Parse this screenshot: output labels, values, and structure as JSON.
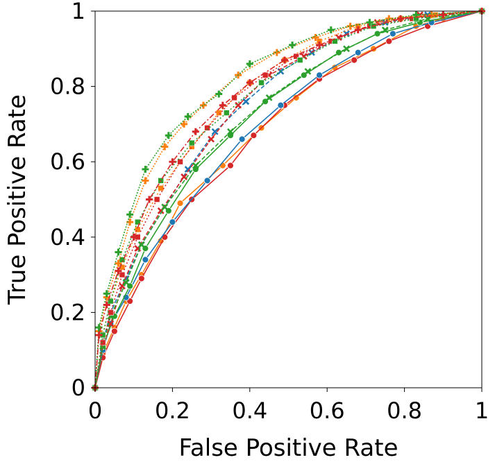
{
  "chart_data": {
    "type": "line",
    "title": "",
    "xlabel": "False Positive Rate",
    "ylabel": "True Positive Rate",
    "xlim": [
      0,
      1
    ],
    "ylim": [
      0,
      1
    ],
    "xticks": [
      "0",
      "0.2",
      "0.4",
      "0.6",
      "0.8",
      "1"
    ],
    "yticks": [
      "0",
      "0.2",
      "0.4",
      "0.6",
      "0.8",
      "1"
    ],
    "grid": false,
    "legend": "none",
    "series": [
      {
        "color": "#ff7f0e",
        "marker": "circle",
        "dash": "solid",
        "x": [
          0,
          0.02,
          0.05,
          0.08,
          0.12,
          0.17,
          0.22,
          0.33,
          0.43,
          0.52,
          0.62,
          0.72,
          0.83,
          0.9,
          1.0
        ],
        "y": [
          0,
          0.09,
          0.16,
          0.23,
          0.3,
          0.39,
          0.49,
          0.59,
          0.69,
          0.77,
          0.85,
          0.9,
          0.96,
          0.98,
          1.0
        ]
      },
      {
        "color": "#d62728",
        "marker": "circle",
        "dash": "solid",
        "x": [
          0,
          0.02,
          0.05,
          0.09,
          0.12,
          0.18,
          0.25,
          0.35,
          0.41,
          0.49,
          0.58,
          0.67,
          0.76,
          0.86,
          1.0
        ],
        "y": [
          0,
          0.08,
          0.15,
          0.23,
          0.29,
          0.4,
          0.5,
          0.59,
          0.67,
          0.75,
          0.82,
          0.87,
          0.92,
          0.96,
          1.0
        ]
      },
      {
        "color": "#1f77b4",
        "marker": "circle",
        "dash": "solid",
        "x": [
          0,
          0.02,
          0.04,
          0.08,
          0.13,
          0.2,
          0.29,
          0.38,
          0.48,
          0.58,
          0.68,
          0.77,
          0.87,
          1.0
        ],
        "y": [
          0,
          0.1,
          0.17,
          0.24,
          0.34,
          0.44,
          0.55,
          0.66,
          0.75,
          0.83,
          0.89,
          0.94,
          0.97,
          1.0
        ]
      },
      {
        "color": "#2ca02c",
        "marker": "circle",
        "dash": "solid",
        "x": [
          0,
          0.02,
          0.05,
          0.09,
          0.13,
          0.19,
          0.26,
          0.35,
          0.44,
          0.54,
          0.63,
          0.73,
          0.84,
          1.0
        ],
        "y": [
          0,
          0.11,
          0.19,
          0.27,
          0.37,
          0.47,
          0.58,
          0.67,
          0.76,
          0.83,
          0.89,
          0.94,
          0.97,
          1.0
        ]
      },
      {
        "color": "#1f77b4",
        "marker": "x",
        "dash": "6,3",
        "x": [
          0,
          0.02,
          0.04,
          0.08,
          0.12,
          0.18,
          0.24,
          0.31,
          0.39,
          0.48,
          0.56,
          0.65,
          0.75,
          0.86,
          1.0
        ],
        "y": [
          0,
          0.12,
          0.2,
          0.29,
          0.38,
          0.48,
          0.58,
          0.68,
          0.76,
          0.84,
          0.89,
          0.94,
          0.97,
          0.99,
          1.0
        ]
      },
      {
        "color": "#d62728",
        "marker": "x",
        "dash": "6,3",
        "x": [
          0,
          0.02,
          0.04,
          0.07,
          0.11,
          0.17,
          0.23,
          0.3,
          0.37,
          0.45,
          0.54,
          0.63,
          0.73,
          0.84,
          1.0
        ],
        "y": [
          0,
          0.11,
          0.17,
          0.27,
          0.37,
          0.47,
          0.56,
          0.66,
          0.75,
          0.83,
          0.88,
          0.93,
          0.97,
          0.99,
          1.0
        ]
      },
      {
        "color": "#2ca02c",
        "marker": "x",
        "dash": "6,3",
        "x": [
          0,
          0.02,
          0.04,
          0.08,
          0.12,
          0.18,
          0.26,
          0.35,
          0.45,
          0.55,
          0.65,
          0.75,
          0.86,
          1.0
        ],
        "y": [
          0,
          0.11,
          0.19,
          0.28,
          0.38,
          0.48,
          0.59,
          0.68,
          0.77,
          0.84,
          0.9,
          0.95,
          0.98,
          1.0
        ]
      },
      {
        "color": "#ff7f0e",
        "marker": "square",
        "dash": "2,3",
        "x": [
          0,
          0.02,
          0.04,
          0.07,
          0.11,
          0.17,
          0.25,
          0.32,
          0.4,
          0.49,
          0.58,
          0.68,
          0.79,
          0.88,
          1.0
        ],
        "y": [
          0,
          0.14,
          0.23,
          0.32,
          0.42,
          0.53,
          0.64,
          0.73,
          0.81,
          0.87,
          0.92,
          0.96,
          0.98,
          0.99,
          1.0
        ]
      },
      {
        "color": "#d62728",
        "marker": "square",
        "dash": "2,3",
        "x": [
          0,
          0.02,
          0.04,
          0.07,
          0.11,
          0.16,
          0.22,
          0.29,
          0.36,
          0.44,
          0.52,
          0.61,
          0.71,
          0.82,
          1.0
        ],
        "y": [
          0,
          0.12,
          0.2,
          0.3,
          0.4,
          0.5,
          0.6,
          0.69,
          0.77,
          0.83,
          0.88,
          0.92,
          0.96,
          0.98,
          1.0
        ]
      },
      {
        "color": "#2ca02c",
        "marker": "square",
        "dash": "2,3",
        "x": [
          0,
          0.02,
          0.04,
          0.07,
          0.11,
          0.17,
          0.25,
          0.34,
          0.43,
          0.53,
          0.62,
          0.72,
          0.83,
          1.0
        ],
        "y": [
          0,
          0.14,
          0.23,
          0.34,
          0.44,
          0.55,
          0.65,
          0.73,
          0.81,
          0.87,
          0.92,
          0.96,
          0.98,
          1.0
        ]
      },
      {
        "color": "#ff7f0e",
        "marker": "plus",
        "dash": "2,2",
        "x": [
          0,
          0.01,
          0.03,
          0.06,
          0.09,
          0.13,
          0.18,
          0.23,
          0.28,
          0.37,
          0.47,
          0.57,
          0.66,
          0.76,
          0.87,
          1.0
        ],
        "y": [
          0,
          0.15,
          0.24,
          0.33,
          0.44,
          0.55,
          0.64,
          0.7,
          0.75,
          0.83,
          0.89,
          0.93,
          0.96,
          0.98,
          0.99,
          1.0
        ]
      },
      {
        "color": "#2ca02c",
        "marker": "plus",
        "dash": "2,2",
        "x": [
          0,
          0.01,
          0.03,
          0.06,
          0.09,
          0.13,
          0.19,
          0.24,
          0.32,
          0.4,
          0.51,
          0.61,
          0.71,
          0.83,
          1.0
        ],
        "y": [
          0,
          0.16,
          0.25,
          0.36,
          0.46,
          0.58,
          0.67,
          0.72,
          0.78,
          0.86,
          0.91,
          0.95,
          0.97,
          0.99,
          1.0
        ]
      },
      {
        "color": "#d62728",
        "marker": "plus",
        "dash": "8,3,2,3",
        "x": [
          0,
          0.01,
          0.03,
          0.06,
          0.1,
          0.14,
          0.2,
          0.26,
          0.33,
          0.4,
          0.49,
          0.58,
          0.68,
          0.79,
          0.9,
          1.0
        ],
        "y": [
          0,
          0.14,
          0.22,
          0.31,
          0.4,
          0.5,
          0.6,
          0.68,
          0.75,
          0.81,
          0.87,
          0.91,
          0.95,
          0.98,
          0.99,
          1.0
        ]
      }
    ]
  }
}
